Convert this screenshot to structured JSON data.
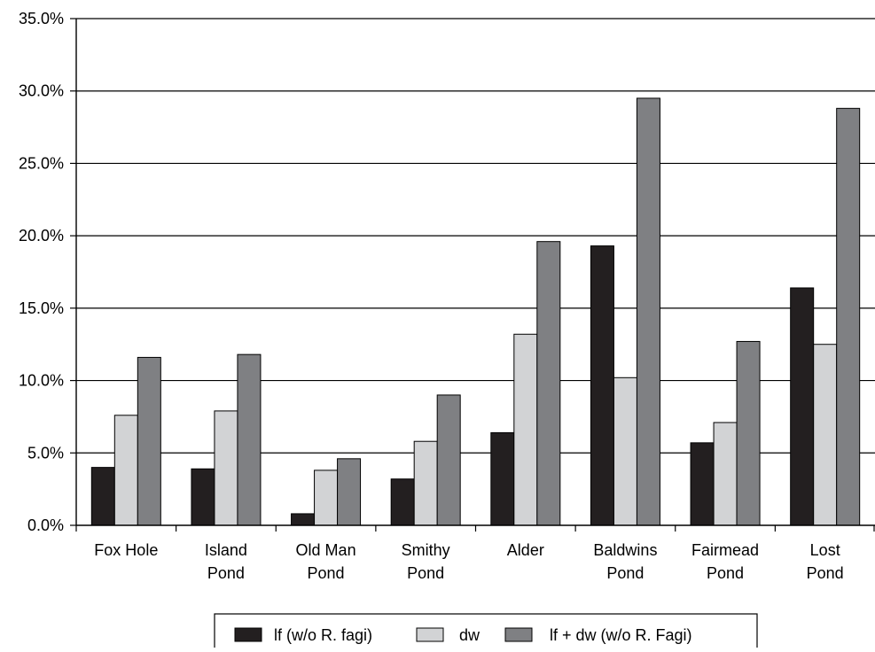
{
  "chart_data": {
    "type": "bar",
    "title": "",
    "xlabel": "",
    "ylabel": "",
    "ylim": [
      0,
      35
    ],
    "y_tick_values": [
      0,
      5,
      10,
      15,
      20,
      25,
      30,
      35
    ],
    "y_tick_labels": [
      "0.0%",
      "5.0%",
      "10.0%",
      "15.0%",
      "20.0%",
      "25.0%",
      "30.0%",
      "35.0%"
    ],
    "grid": "horizontal",
    "legend_position": "bottom",
    "categories": [
      [
        "Fox Hole"
      ],
      [
        "Island",
        "Pond"
      ],
      [
        "Old Man",
        "Pond"
      ],
      [
        "Smithy",
        "Pond"
      ],
      [
        "Alder"
      ],
      [
        "Baldwins",
        "Pond"
      ],
      [
        "Fairmead",
        "Pond"
      ],
      [
        "Lost",
        "Pond"
      ]
    ],
    "series": [
      {
        "name": "lf (w/o R. fagi)",
        "color": "#231f20",
        "values": [
          4.0,
          3.9,
          0.8,
          3.2,
          6.4,
          19.3,
          5.7,
          16.4
        ]
      },
      {
        "name": "dw",
        "color": "#d2d3d5",
        "values": [
          7.6,
          7.9,
          3.8,
          5.8,
          13.2,
          10.2,
          7.1,
          12.5
        ]
      },
      {
        "name": "lf + dw (w/o R. Fagi)",
        "color": "#7f8083",
        "values": [
          11.6,
          11.8,
          4.6,
          9.0,
          19.6,
          29.5,
          12.7,
          28.8
        ]
      }
    ]
  }
}
